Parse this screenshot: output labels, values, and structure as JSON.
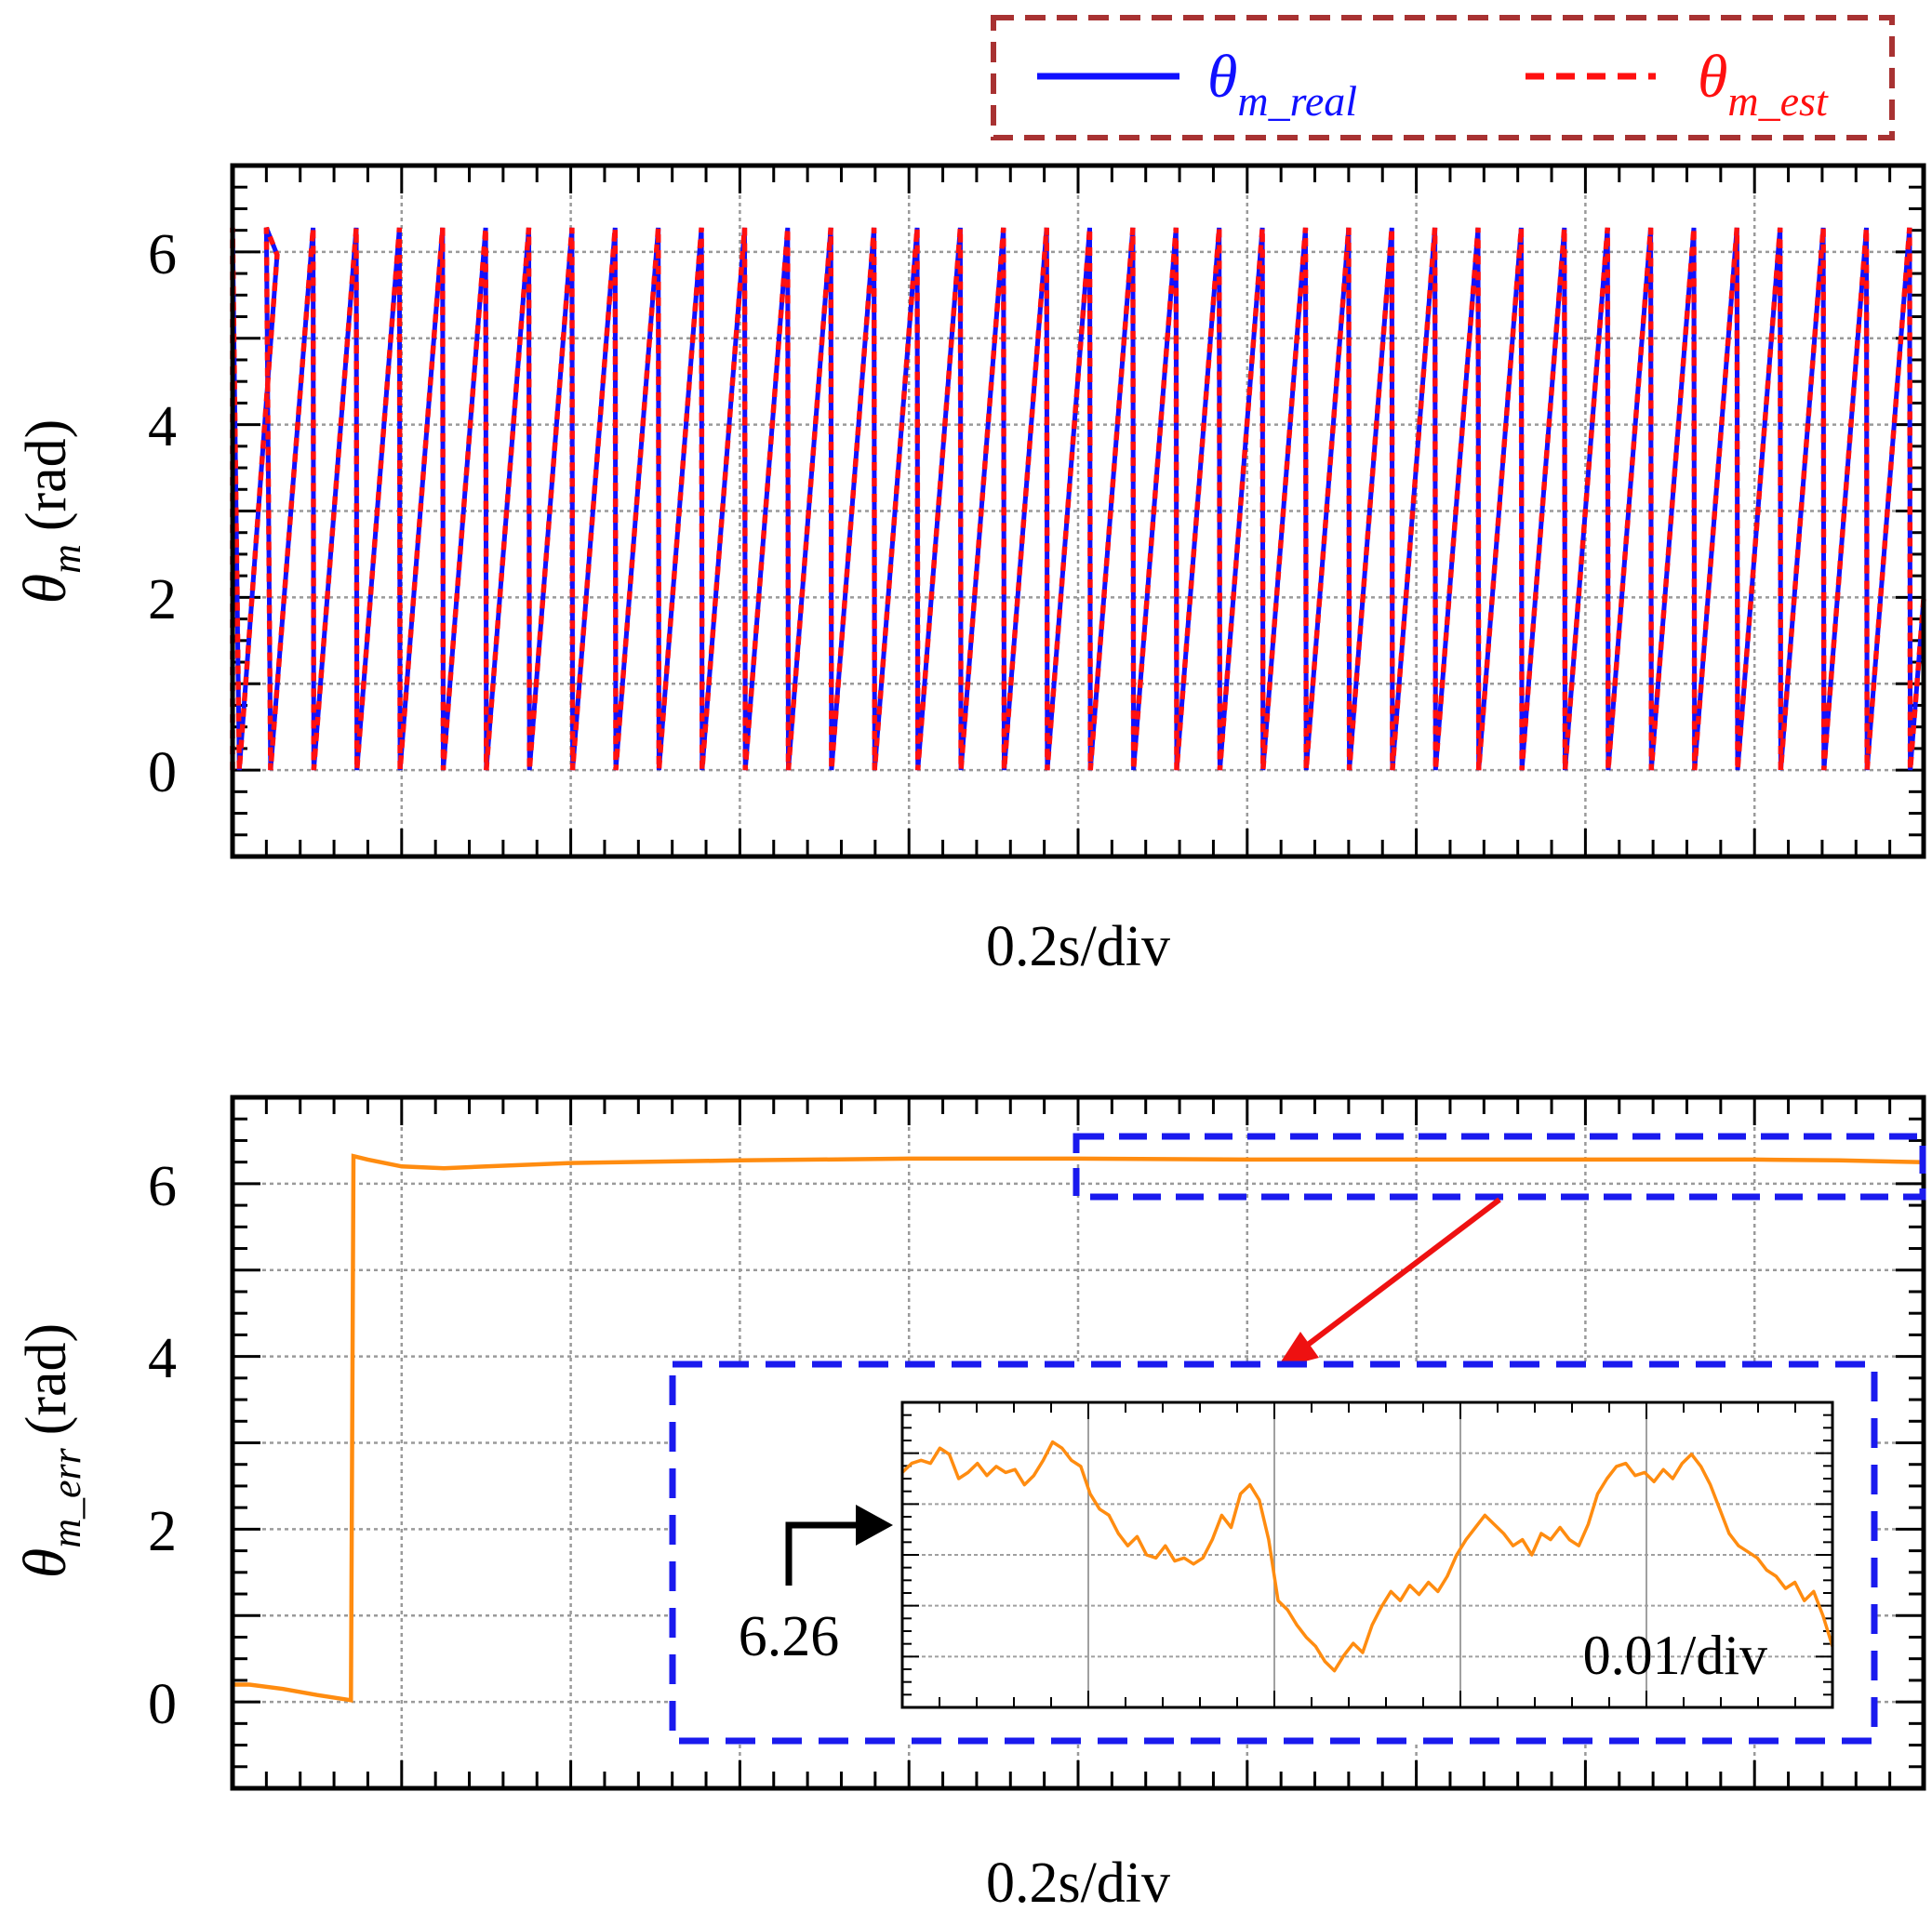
{
  "colors": {
    "real": "#1010ff",
    "est": "#ff1010",
    "error": "#ff8c10",
    "legend_border": "#a83232",
    "zoom_box": "#1a1aee",
    "zoom_arrow": "#ee1111"
  },
  "chart_data": [
    {
      "type": "line",
      "legend": {
        "placement": "top-right",
        "entries": [
          {
            "symbol": "θ",
            "sub": "m_real",
            "style": "solid"
          },
          {
            "symbol": "θ",
            "sub": "m_est",
            "style": "dashed"
          }
        ]
      },
      "ylabel": {
        "symbol": "θ",
        "sub": "m",
        "unit": "(rad)"
      },
      "xlabel": "0.2s/div",
      "ylim": [
        -1,
        7
      ],
      "yticks": [
        "0",
        "2",
        "4",
        "6"
      ],
      "xlim": [
        0,
        2.0
      ],
      "grid": true,
      "sawtooth": {
        "min": 0,
        "max": 6.28,
        "start_time": 0.045,
        "period": 0.05103
      },
      "series": [
        {
          "name": "θm_real",
          "style": "solid"
        },
        {
          "name": "θm_est",
          "style": "dashed"
        }
      ]
    },
    {
      "type": "line",
      "ylabel": {
        "symbol": "θ",
        "sub": "m_err",
        "unit": "(rad)"
      },
      "xlabel": "0.2s/div",
      "ylim": [
        -1,
        7
      ],
      "yticks": [
        "0",
        "2",
        "4",
        "6"
      ],
      "xlim": [
        0,
        2.0
      ],
      "grid": true,
      "series": [
        {
          "x": [
            0,
            0.02,
            0.06,
            0.1,
            0.14,
            0.143,
            0.16,
            0.2,
            0.25,
            0.3,
            0.4,
            0.6,
            0.8,
            1.0,
            1.2,
            1.4,
            1.6,
            1.8,
            1.9,
            2.0
          ],
          "y": [
            0.2,
            0.2,
            0.15,
            0.08,
            0.02,
            6.32,
            6.28,
            6.2,
            6.18,
            6.2,
            6.24,
            6.27,
            6.29,
            6.29,
            6.28,
            6.28,
            6.28,
            6.28,
            6.27,
            6.25
          ]
        }
      ],
      "inset": {
        "annotation": "6.26",
        "xlabel": "0.01/div",
        "y_center": 6.26,
        "series": [
          {
            "y": [
              6.42,
              6.45,
              6.46,
              6.45,
              6.5,
              6.48,
              6.4,
              6.42,
              6.45,
              6.41,
              6.44,
              6.42,
              6.43,
              6.38,
              6.41,
              6.46,
              6.52,
              6.5,
              6.46,
              6.44,
              6.35,
              6.3,
              6.28,
              6.22,
              6.18,
              6.21,
              6.15,
              6.14,
              6.18,
              6.13,
              6.14,
              6.12,
              6.14,
              6.2,
              6.28,
              6.24,
              6.35,
              6.38,
              6.33,
              6.2,
              6.0,
              5.97,
              5.92,
              5.88,
              5.85,
              5.8,
              5.77,
              5.82,
              5.86,
              5.83,
              5.92,
              5.98,
              6.03,
              6.0,
              6.05,
              6.02,
              6.06,
              6.03,
              6.08,
              6.15,
              6.2,
              6.24,
              6.28,
              6.25,
              6.22,
              6.18,
              6.2,
              6.15,
              6.22,
              6.2,
              6.24,
              6.2,
              6.18,
              6.25,
              6.35,
              6.4,
              6.44,
              6.45,
              6.41,
              6.42,
              6.39,
              6.43,
              6.4,
              6.45,
              6.48,
              6.44,
              6.38,
              6.3,
              6.22,
              6.18,
              6.16,
              6.14,
              6.1,
              6.08,
              6.04,
              6.06,
              6.0,
              6.03,
              5.95,
              5.85
            ]
          }
        ]
      }
    }
  ]
}
